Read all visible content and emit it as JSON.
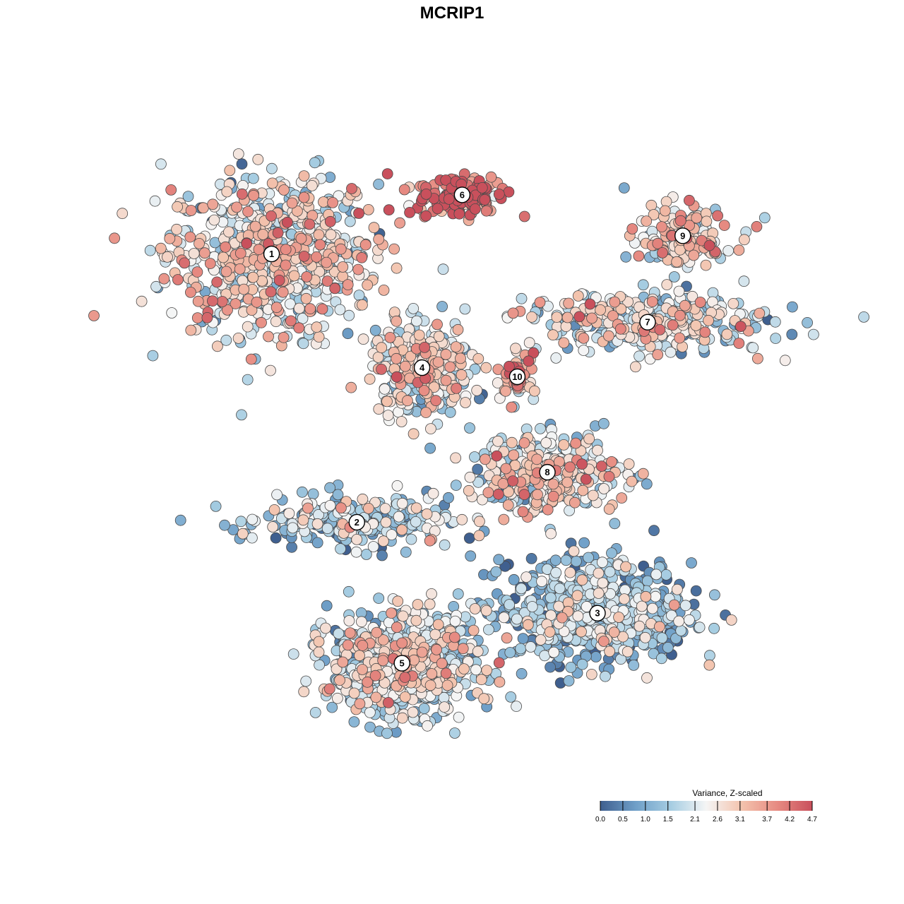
{
  "chart_data": {
    "type": "scatter",
    "title": "MCRIP1",
    "xlabel": "",
    "ylabel": "",
    "grid": false,
    "legend_placement": "bottom-right",
    "color_scale": {
      "title": "Variance, Z-scaled",
      "min": 0.0,
      "max": 4.7,
      "ticks": [
        "0.0",
        "0.5",
        "1.0",
        "1.5",
        "2.1",
        "2.6",
        "3.1",
        "3.7",
        "4.2",
        "4.7"
      ],
      "colors": [
        "#3f5f8f",
        "#6f9fc8",
        "#a6cde2",
        "#f5f5f5",
        "#f3c3ad",
        "#e78b82",
        "#c9505c"
      ]
    },
    "clusters": [
      {
        "label": "1",
        "x": -3.3,
        "y": 4.7,
        "spread_x": 1.9,
        "spread_y": 1.6,
        "mean": 2.4,
        "n": 700
      },
      {
        "label": "2",
        "x": -1.6,
        "y": -1.2,
        "spread_x": 1.7,
        "spread_y": 0.5,
        "mean": 1.5,
        "n": 260
      },
      {
        "label": "3",
        "x": 3.2,
        "y": -3.2,
        "spread_x": 1.7,
        "spread_y": 1.0,
        "mean": 1.2,
        "n": 700
      },
      {
        "label": "4",
        "x": -0.3,
        "y": 2.2,
        "spread_x": 0.9,
        "spread_y": 0.9,
        "mean": 2.2,
        "n": 330
      },
      {
        "label": "5",
        "x": -0.7,
        "y": -4.3,
        "spread_x": 1.3,
        "spread_y": 1.0,
        "mean": 1.8,
        "n": 800
      },
      {
        "label": "6",
        "x": 0.5,
        "y": 6.0,
        "spread_x": 0.8,
        "spread_y": 0.4,
        "mean": 4.4,
        "n": 160
      },
      {
        "label": "7",
        "x": 4.2,
        "y": 3.2,
        "spread_x": 2.2,
        "spread_y": 0.6,
        "mean": 2.1,
        "n": 350
      },
      {
        "label": "8",
        "x": 2.2,
        "y": -0.1,
        "spread_x": 1.4,
        "spread_y": 0.8,
        "mean": 2.3,
        "n": 330
      },
      {
        "label": "9",
        "x": 4.9,
        "y": 5.1,
        "spread_x": 0.9,
        "spread_y": 0.6,
        "mean": 2.5,
        "n": 160
      },
      {
        "label": "10",
        "x": 1.6,
        "y": 2.0,
        "spread_x": 0.3,
        "spread_y": 0.5,
        "mean": 3.2,
        "n": 70
      }
    ],
    "xlim": [
      -5.9,
      7.2
    ],
    "ylim": [
      -6.8,
      7.8
    ]
  }
}
